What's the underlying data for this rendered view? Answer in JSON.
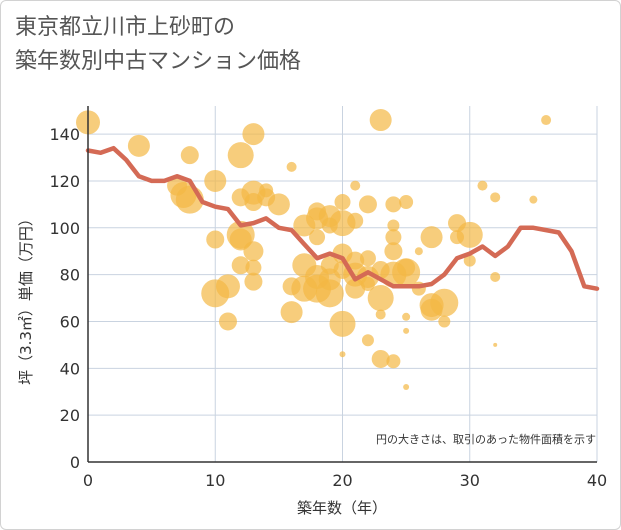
{
  "title_lines": [
    "東京都立川市上砂町の",
    "築年数別中古マンション価格"
  ],
  "colors": {
    "bubble": "#f3b845",
    "line": "#d46a55",
    "grid": "#c9d3e0",
    "axis": "#333333"
  },
  "chart_data": {
    "type": "scatter",
    "title": "東京都立川市上砂町の築年数別中古マンション価格",
    "xlabel": "築年数（年）",
    "ylabel": "坪（3.3㎡）単価（万円）",
    "xlim": [
      0,
      40
    ],
    "ylim": [
      0,
      152
    ],
    "xticks": [
      0,
      10,
      20,
      30,
      40
    ],
    "yticks": [
      0,
      20,
      40,
      60,
      80,
      100,
      120,
      140
    ],
    "grid": true,
    "note": "円の大きさは、取引のあった物件面積を示す",
    "series": [
      {
        "kind": "bubble",
        "points": [
          {
            "x": 0,
            "y": 145,
            "r": 12
          },
          {
            "x": 4,
            "y": 135,
            "r": 11
          },
          {
            "x": 7,
            "y": 118,
            "r": 10
          },
          {
            "x": 7.5,
            "y": 114,
            "r": 13
          },
          {
            "x": 8,
            "y": 131,
            "r": 9
          },
          {
            "x": 8,
            "y": 112,
            "r": 14
          },
          {
            "x": 10,
            "y": 120,
            "r": 11
          },
          {
            "x": 10,
            "y": 95,
            "r": 9
          },
          {
            "x": 10,
            "y": 72,
            "r": 14
          },
          {
            "x": 11,
            "y": 75,
            "r": 12
          },
          {
            "x": 11,
            "y": 60,
            "r": 9
          },
          {
            "x": 12,
            "y": 131,
            "r": 13
          },
          {
            "x": 12,
            "y": 113,
            "r": 9
          },
          {
            "x": 12,
            "y": 97,
            "r": 14
          },
          {
            "x": 12,
            "y": 95,
            "r": 11
          },
          {
            "x": 12,
            "y": 84,
            "r": 9
          },
          {
            "x": 13,
            "y": 140,
            "r": 11
          },
          {
            "x": 13,
            "y": 115,
            "r": 12
          },
          {
            "x": 13,
            "y": 111,
            "r": 9
          },
          {
            "x": 13,
            "y": 90,
            "r": 10
          },
          {
            "x": 13,
            "y": 83,
            "r": 8
          },
          {
            "x": 13,
            "y": 77,
            "r": 9
          },
          {
            "x": 14,
            "y": 116,
            "r": 7
          },
          {
            "x": 14,
            "y": 113,
            "r": 9
          },
          {
            "x": 15,
            "y": 110,
            "r": 11
          },
          {
            "x": 16,
            "y": 126,
            "r": 5
          },
          {
            "x": 16,
            "y": 75,
            "r": 9
          },
          {
            "x": 16,
            "y": 64,
            "r": 11
          },
          {
            "x": 17,
            "y": 101,
            "r": 11
          },
          {
            "x": 17,
            "y": 84,
            "r": 12
          },
          {
            "x": 17,
            "y": 74,
            "r": 13
          },
          {
            "x": 18,
            "y": 107,
            "r": 9
          },
          {
            "x": 18,
            "y": 104,
            "r": 11
          },
          {
            "x": 18,
            "y": 96,
            "r": 8
          },
          {
            "x": 18,
            "y": 79,
            "r": 12
          },
          {
            "x": 18,
            "y": 74,
            "r": 14
          },
          {
            "x": 19,
            "y": 105,
            "r": 11
          },
          {
            "x": 19,
            "y": 101,
            "r": 8
          },
          {
            "x": 19,
            "y": 84,
            "r": 9
          },
          {
            "x": 19,
            "y": 78,
            "r": 11
          },
          {
            "x": 19,
            "y": 72,
            "r": 14
          },
          {
            "x": 20,
            "y": 111,
            "r": 8
          },
          {
            "x": 20,
            "y": 102,
            "r": 13
          },
          {
            "x": 20,
            "y": 89,
            "r": 10
          },
          {
            "x": 20,
            "y": 82,
            "r": 9
          },
          {
            "x": 20,
            "y": 59,
            "r": 13
          },
          {
            "x": 20,
            "y": 46,
            "r": 3
          },
          {
            "x": 21,
            "y": 118,
            "r": 5
          },
          {
            "x": 21,
            "y": 103,
            "r": 8
          },
          {
            "x": 21,
            "y": 86,
            "r": 9
          },
          {
            "x": 21,
            "y": 80,
            "r": 12
          },
          {
            "x": 21,
            "y": 74,
            "r": 10
          },
          {
            "x": 22,
            "y": 110,
            "r": 9
          },
          {
            "x": 22,
            "y": 87,
            "r": 8
          },
          {
            "x": 22,
            "y": 79,
            "r": 11
          },
          {
            "x": 22,
            "y": 76,
            "r": 7
          },
          {
            "x": 22,
            "y": 52,
            "r": 6
          },
          {
            "x": 23,
            "y": 146,
            "r": 11
          },
          {
            "x": 23,
            "y": 82,
            "r": 9
          },
          {
            "x": 23,
            "y": 70,
            "r": 13
          },
          {
            "x": 23,
            "y": 63,
            "r": 5
          },
          {
            "x": 23,
            "y": 44,
            "r": 9
          },
          {
            "x": 24,
            "y": 110,
            "r": 8
          },
          {
            "x": 24,
            "y": 101,
            "r": 6
          },
          {
            "x": 24,
            "y": 96,
            "r": 8
          },
          {
            "x": 24,
            "y": 90,
            "r": 9
          },
          {
            "x": 24,
            "y": 80,
            "r": 13
          },
          {
            "x": 24,
            "y": 43,
            "r": 7
          },
          {
            "x": 25,
            "y": 111,
            "r": 7
          },
          {
            "x": 25,
            "y": 83,
            "r": 9
          },
          {
            "x": 25,
            "y": 81,
            "r": 14
          },
          {
            "x": 25,
            "y": 62,
            "r": 4
          },
          {
            "x": 25,
            "y": 56,
            "r": 3
          },
          {
            "x": 25,
            "y": 32,
            "r": 3
          },
          {
            "x": 26,
            "y": 90,
            "r": 4
          },
          {
            "x": 26,
            "y": 74,
            "r": 7
          },
          {
            "x": 27,
            "y": 96,
            "r": 11
          },
          {
            "x": 27,
            "y": 67,
            "r": 12
          },
          {
            "x": 27,
            "y": 65,
            "r": 11
          },
          {
            "x": 28,
            "y": 68,
            "r": 14
          },
          {
            "x": 28,
            "y": 60,
            "r": 6
          },
          {
            "x": 29,
            "y": 102,
            "r": 9
          },
          {
            "x": 29,
            "y": 96,
            "r": 7
          },
          {
            "x": 30,
            "y": 97,
            "r": 13
          },
          {
            "x": 30,
            "y": 86,
            "r": 6
          },
          {
            "x": 31,
            "y": 118,
            "r": 5
          },
          {
            "x": 32,
            "y": 113,
            "r": 5
          },
          {
            "x": 32,
            "y": 79,
            "r": 5
          },
          {
            "x": 32,
            "y": 50,
            "r": 2
          },
          {
            "x": 35,
            "y": 112,
            "r": 4
          },
          {
            "x": 36,
            "y": 146,
            "r": 5
          }
        ]
      },
      {
        "kind": "line",
        "points": [
          {
            "x": 0,
            "y": 133
          },
          {
            "x": 1,
            "y": 132
          },
          {
            "x": 2,
            "y": 134
          },
          {
            "x": 3,
            "y": 129
          },
          {
            "x": 4,
            "y": 122
          },
          {
            "x": 5,
            "y": 120
          },
          {
            "x": 6,
            "y": 120
          },
          {
            "x": 7,
            "y": 122
          },
          {
            "x": 8,
            "y": 120
          },
          {
            "x": 9,
            "y": 111
          },
          {
            "x": 10,
            "y": 109
          },
          {
            "x": 11,
            "y": 108
          },
          {
            "x": 12,
            "y": 101
          },
          {
            "x": 13,
            "y": 102
          },
          {
            "x": 14,
            "y": 104
          },
          {
            "x": 15,
            "y": 100
          },
          {
            "x": 16,
            "y": 99
          },
          {
            "x": 17,
            "y": 93
          },
          {
            "x": 18,
            "y": 87
          },
          {
            "x": 19,
            "y": 89
          },
          {
            "x": 20,
            "y": 87
          },
          {
            "x": 21,
            "y": 78
          },
          {
            "x": 22,
            "y": 81
          },
          {
            "x": 23,
            "y": 78
          },
          {
            "x": 24,
            "y": 75
          },
          {
            "x": 25,
            "y": 75
          },
          {
            "x": 26,
            "y": 75
          },
          {
            "x": 27,
            "y": 76
          },
          {
            "x": 28,
            "y": 80
          },
          {
            "x": 29,
            "y": 87
          },
          {
            "x": 30,
            "y": 89
          },
          {
            "x": 31,
            "y": 92
          },
          {
            "x": 32,
            "y": 88
          },
          {
            "x": 33,
            "y": 92
          },
          {
            "x": 34,
            "y": 100
          },
          {
            "x": 35,
            "y": 100
          },
          {
            "x": 36,
            "y": 99
          },
          {
            "x": 37,
            "y": 98
          },
          {
            "x": 38,
            "y": 90
          },
          {
            "x": 39,
            "y": 75
          },
          {
            "x": 40,
            "y": 74
          }
        ]
      }
    ]
  }
}
